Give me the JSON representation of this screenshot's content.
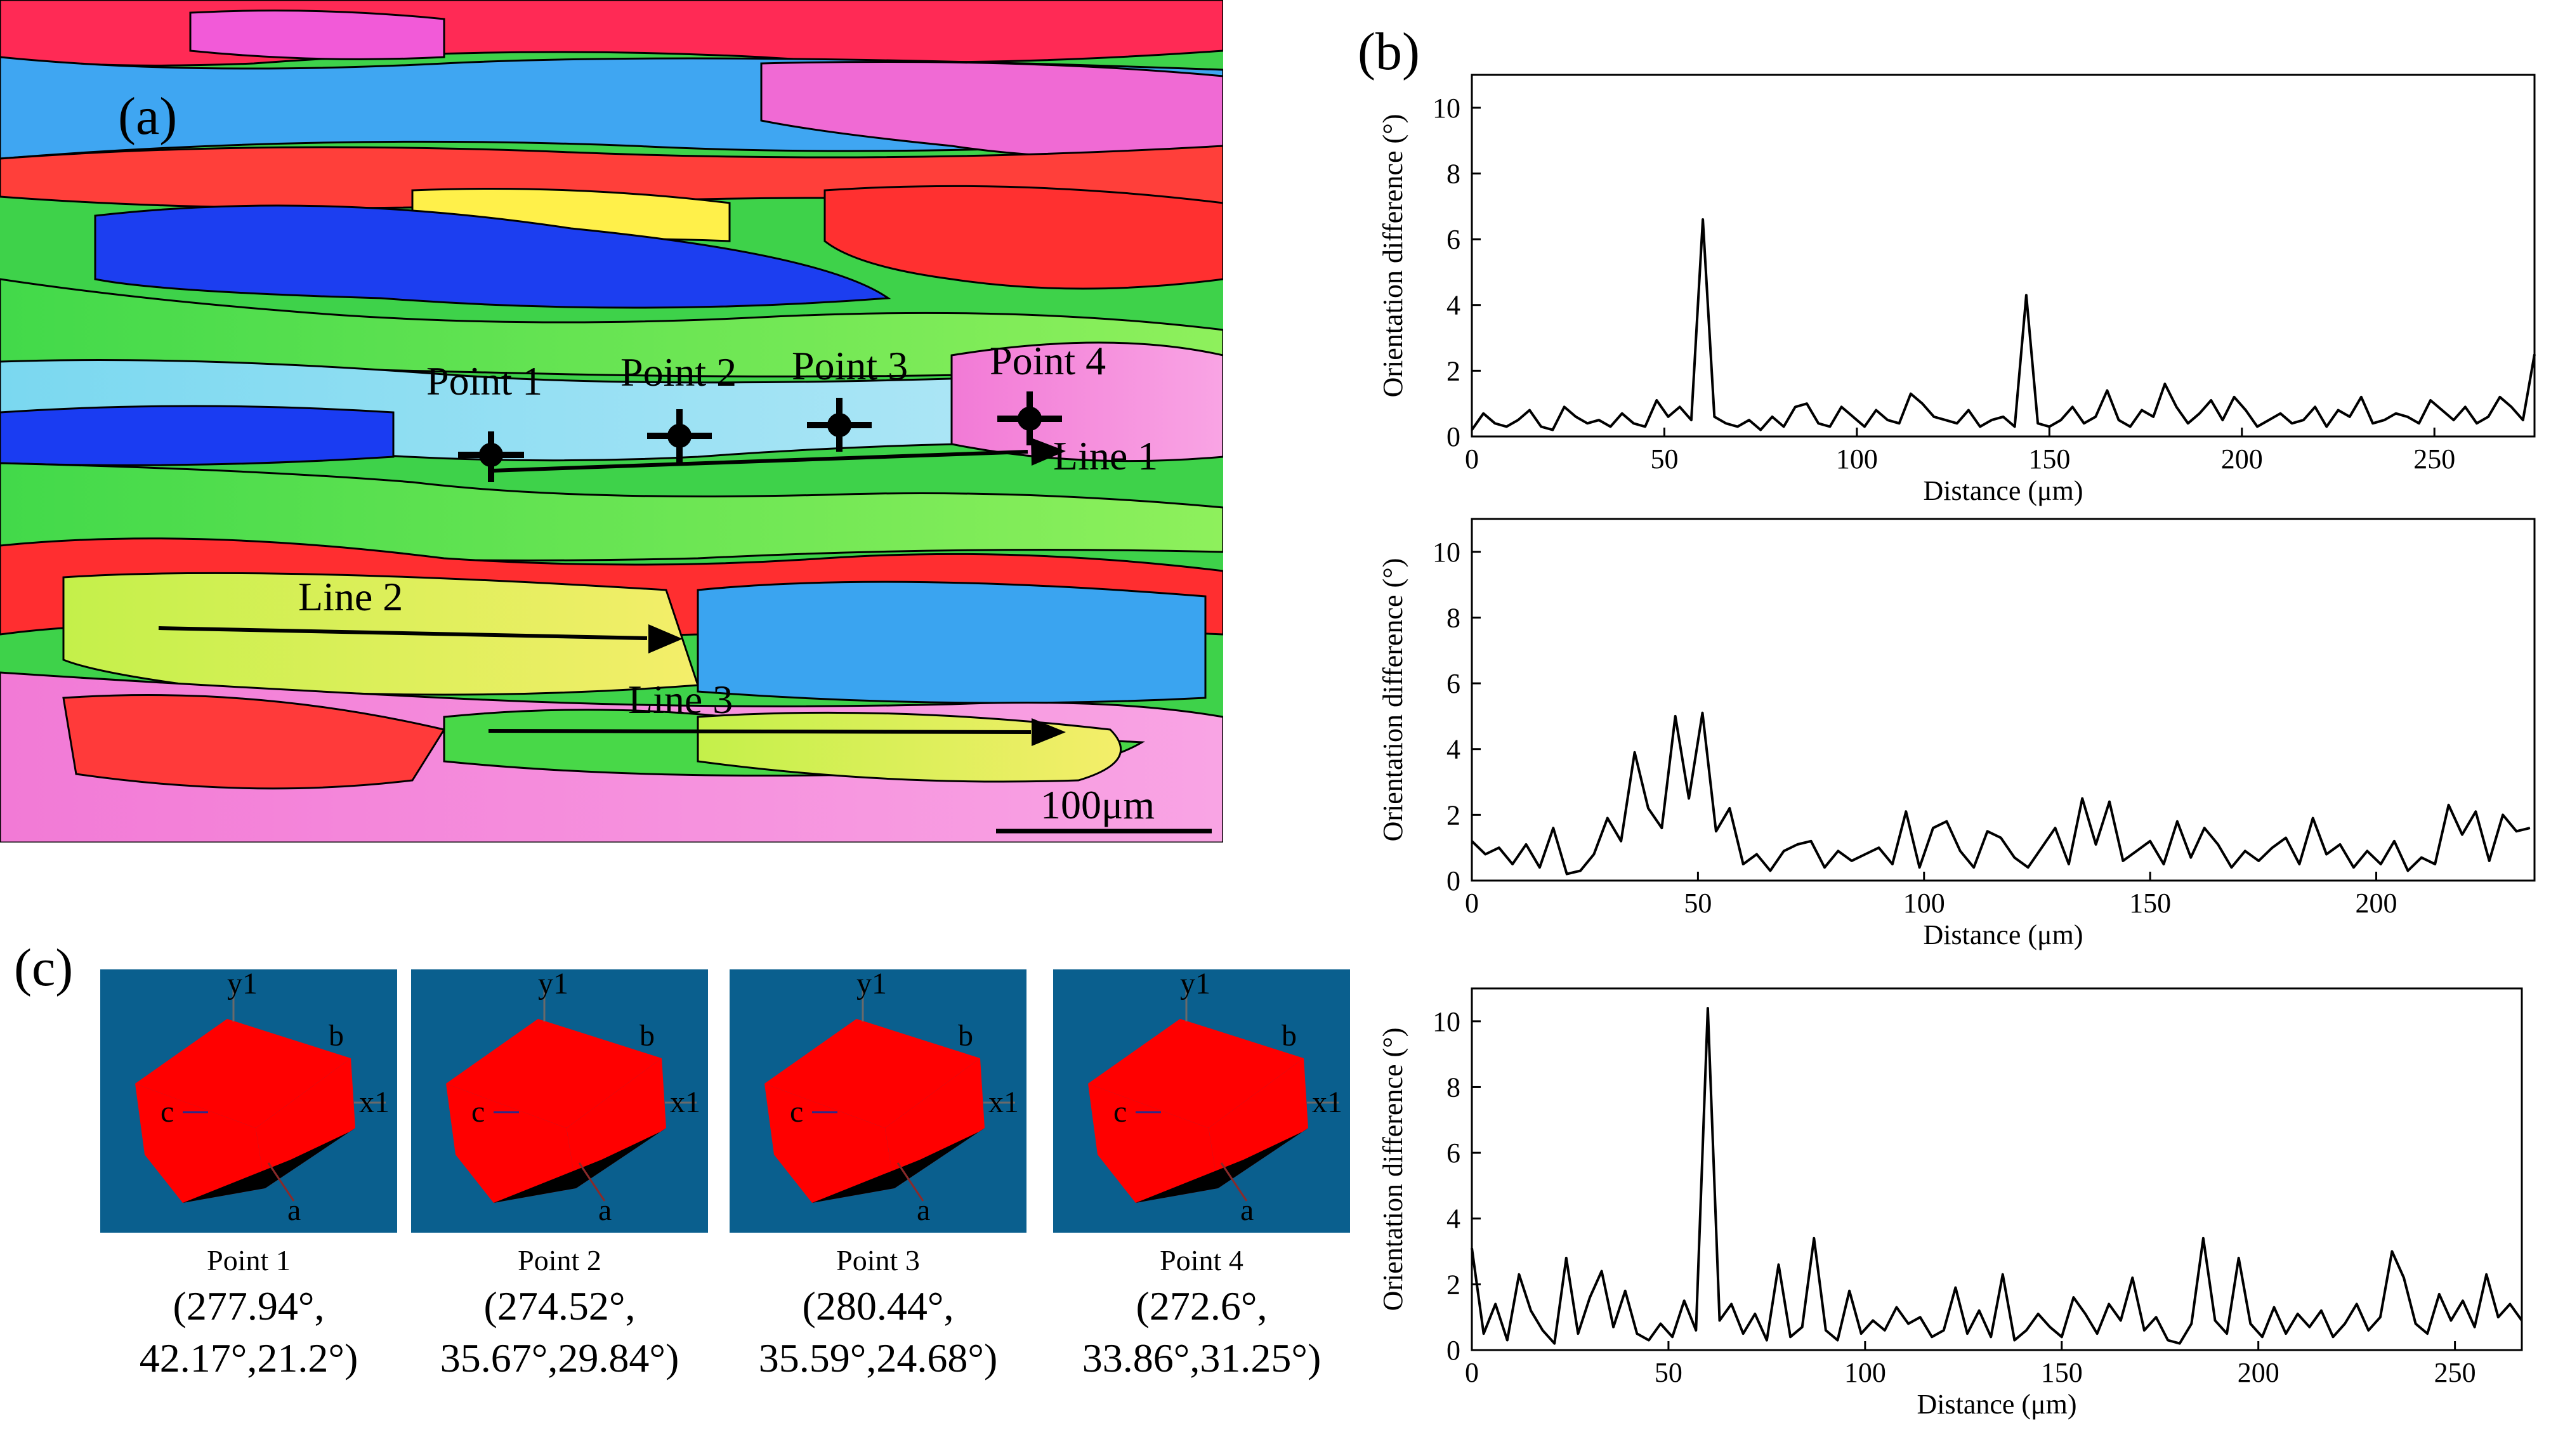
{
  "panels": {
    "a": "(a)",
    "b": "(b)",
    "c": "(c)"
  },
  "map": {
    "points": [
      "Point 1",
      "Point 2",
      "Point 3",
      "Point 4"
    ],
    "lines": [
      "Line 1",
      "Line 2",
      "Line 3"
    ],
    "scale_bar": "100μm"
  },
  "cubes": [
    {
      "label": "Point 1",
      "angles_line1": "(277.94°,",
      "angles_line2": "42.17°,21.2°)"
    },
    {
      "label": "Point 2",
      "angles_line1": "(274.52°,",
      "angles_line2": "35.67°,29.84°)"
    },
    {
      "label": "Point 3",
      "angles_line1": "(280.44°,",
      "angles_line2": "35.59°,24.68°)"
    },
    {
      "label": "Point 4",
      "angles_line1": "(272.6°,",
      "angles_line2": "33.86°,31.25°)"
    }
  ],
  "cube_axes": {
    "y": "y1",
    "x": "x1",
    "a": "a",
    "b": "b",
    "c": "c"
  },
  "colors": {
    "cube_face": "#ff0000",
    "cube_shadow": "#000000",
    "cube_bg": "#0a5f8e"
  },
  "chart_data": [
    {
      "type": "line",
      "title": "",
      "xlabel": "Distance (μm)",
      "ylabel": "Orientation difference (°)",
      "xlim": [
        0,
        276
      ],
      "ylim": [
        0,
        11
      ],
      "xticks": [
        0,
        50,
        100,
        150,
        200,
        250
      ],
      "yticks": [
        0,
        2,
        4,
        6,
        8,
        10
      ],
      "series": [
        {
          "name": "Line 1",
          "x": [
            0,
            3,
            6,
            9,
            12,
            15,
            18,
            21,
            24,
            27,
            30,
            33,
            36,
            39,
            42,
            45,
            48,
            51,
            54,
            57,
            60,
            63,
            66,
            69,
            72,
            75,
            78,
            81,
            84,
            87,
            90,
            93,
            96,
            99,
            102,
            105,
            108,
            111,
            114,
            117,
            120,
            123,
            126,
            129,
            132,
            135,
            138,
            141,
            144,
            147,
            150,
            153,
            156,
            159,
            162,
            165,
            168,
            171,
            174,
            177,
            180,
            183,
            186,
            189,
            192,
            195,
            198,
            201,
            204,
            207,
            210,
            213,
            216,
            219,
            222,
            225,
            228,
            231,
            234,
            237,
            240,
            243,
            246,
            249,
            252,
            255,
            258,
            261,
            264,
            267,
            270,
            273,
            276
          ],
          "y": [
            0.2,
            0.7,
            0.4,
            0.3,
            0.5,
            0.8,
            0.3,
            0.2,
            0.9,
            0.6,
            0.4,
            0.5,
            0.3,
            0.7,
            0.4,
            0.3,
            1.1,
            0.6,
            0.9,
            0.5,
            6.6,
            0.6,
            0.4,
            0.3,
            0.5,
            0.2,
            0.6,
            0.3,
            0.9,
            1.0,
            0.4,
            0.3,
            0.9,
            0.6,
            0.3,
            0.8,
            0.5,
            0.4,
            1.3,
            1.0,
            0.6,
            0.5,
            0.4,
            0.8,
            0.3,
            0.5,
            0.6,
            0.3,
            4.3,
            0.4,
            0.3,
            0.5,
            0.9,
            0.4,
            0.6,
            1.4,
            0.5,
            0.3,
            0.8,
            0.6,
            1.6,
            0.9,
            0.4,
            0.7,
            1.1,
            0.5,
            1.2,
            0.8,
            0.3,
            0.5,
            0.7,
            0.4,
            0.5,
            0.9,
            0.3,
            0.8,
            0.6,
            1.2,
            0.4,
            0.5,
            0.7,
            0.6,
            0.4,
            1.1,
            0.8,
            0.5,
            0.9,
            0.4,
            0.6,
            1.2,
            0.9,
            0.5,
            2.5
          ]
        }
      ]
    },
    {
      "type": "line",
      "title": "",
      "xlabel": "Distance (μm)",
      "ylabel": "Orientation difference (°)",
      "xlim": [
        0,
        235
      ],
      "ylim": [
        0,
        11
      ],
      "xticks": [
        0,
        50,
        100,
        150,
        200
      ],
      "yticks": [
        0,
        2,
        4,
        6,
        8,
        10
      ],
      "series": [
        {
          "name": "Line 2",
          "x": [
            0,
            3,
            6,
            9,
            12,
            15,
            18,
            21,
            24,
            27,
            30,
            33,
            36,
            39,
            42,
            45,
            48,
            51,
            54,
            57,
            60,
            63,
            66,
            69,
            72,
            75,
            78,
            81,
            84,
            87,
            90,
            93,
            96,
            99,
            102,
            105,
            108,
            111,
            114,
            117,
            120,
            123,
            126,
            129,
            132,
            135,
            138,
            141,
            144,
            147,
            150,
            153,
            156,
            159,
            162,
            165,
            168,
            171,
            174,
            177,
            180,
            183,
            186,
            189,
            192,
            195,
            198,
            201,
            204,
            207,
            210,
            213,
            216,
            219,
            222,
            225,
            228,
            231,
            234
          ],
          "y": [
            1.2,
            0.8,
            1.0,
            0.5,
            1.1,
            0.4,
            1.6,
            0.2,
            0.3,
            0.8,
            1.9,
            1.2,
            3.9,
            2.2,
            1.6,
            5.0,
            2.5,
            5.1,
            1.5,
            2.2,
            0.5,
            0.8,
            0.3,
            0.9,
            1.1,
            1.2,
            0.4,
            0.9,
            0.6,
            0.8,
            1.0,
            0.5,
            2.1,
            0.4,
            1.6,
            1.8,
            0.9,
            0.4,
            1.5,
            1.3,
            0.7,
            0.4,
            1.0,
            1.6,
            0.5,
            2.5,
            1.1,
            2.4,
            0.6,
            0.9,
            1.2,
            0.5,
            1.8,
            0.7,
            1.6,
            1.1,
            0.4,
            0.9,
            0.6,
            1.0,
            1.3,
            0.5,
            1.9,
            0.8,
            1.1,
            0.4,
            0.9,
            0.5,
            1.2,
            0.3,
            0.7,
            0.5,
            2.3,
            1.4,
            2.1,
            0.6,
            2.0,
            1.5,
            1.6
          ]
        }
      ]
    },
    {
      "type": "line",
      "title": "",
      "xlabel": "Distance (μm)",
      "ylabel": "Orientation difference (°)",
      "xlim": [
        0,
        267
      ],
      "ylim": [
        0,
        11
      ],
      "xticks": [
        0,
        50,
        100,
        150,
        200,
        250
      ],
      "yticks": [
        0,
        2,
        4,
        6,
        8,
        10
      ],
      "series": [
        {
          "name": "Line 3",
          "x": [
            0,
            3,
            6,
            9,
            12,
            15,
            18,
            21,
            24,
            27,
            30,
            33,
            36,
            39,
            42,
            45,
            48,
            51,
            54,
            57,
            60,
            63,
            66,
            69,
            72,
            75,
            78,
            81,
            84,
            87,
            90,
            93,
            96,
            99,
            102,
            105,
            108,
            111,
            114,
            117,
            120,
            123,
            126,
            129,
            132,
            135,
            138,
            141,
            144,
            147,
            150,
            153,
            156,
            159,
            162,
            165,
            168,
            171,
            174,
            177,
            180,
            183,
            186,
            189,
            192,
            195,
            198,
            201,
            204,
            207,
            210,
            213,
            216,
            219,
            222,
            225,
            228,
            231,
            234,
            237,
            240,
            243,
            246,
            249,
            252,
            255,
            258,
            261,
            264,
            267
          ],
          "y": [
            3.1,
            0.5,
            1.4,
            0.3,
            2.3,
            1.2,
            0.6,
            0.2,
            2.8,
            0.5,
            1.6,
            2.4,
            0.7,
            1.8,
            0.5,
            0.3,
            0.8,
            0.4,
            1.5,
            0.6,
            10.4,
            0.9,
            1.4,
            0.5,
            1.1,
            0.3,
            2.6,
            0.4,
            0.7,
            3.4,
            0.6,
            0.3,
            1.8,
            0.5,
            0.9,
            0.6,
            1.3,
            0.8,
            1.0,
            0.4,
            0.6,
            1.9,
            0.5,
            1.2,
            0.4,
            2.3,
            0.3,
            0.6,
            1.1,
            0.7,
            0.4,
            1.6,
            1.1,
            0.5,
            1.4,
            0.9,
            2.2,
            0.6,
            1.0,
            0.3,
            0.2,
            0.8,
            3.4,
            0.9,
            0.5,
            2.8,
            0.8,
            0.4,
            1.3,
            0.5,
            1.1,
            0.7,
            1.2,
            0.4,
            0.8,
            1.4,
            0.6,
            1.0,
            3.0,
            2.2,
            0.8,
            0.5,
            1.7,
            0.9,
            1.5,
            0.7,
            2.3,
            1.0,
            1.4,
            0.9
          ]
        }
      ]
    }
  ]
}
